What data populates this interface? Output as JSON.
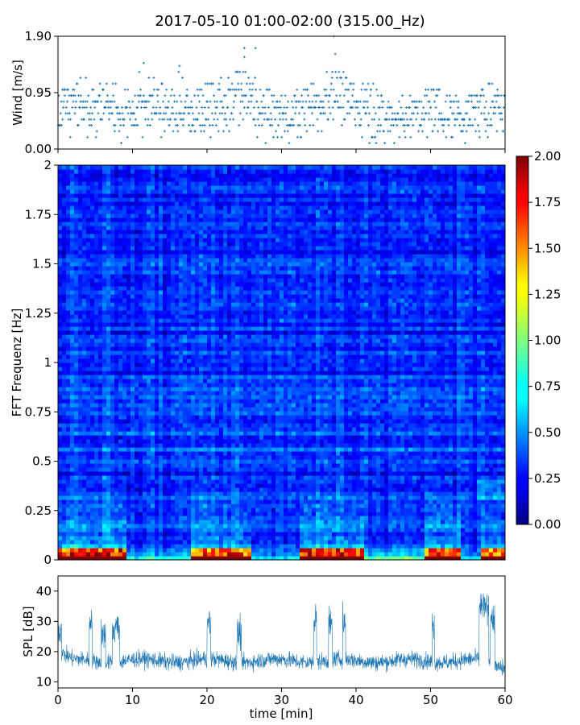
{
  "title": "2017-05-10 01:00-02:00 (315.00_Hz)",
  "chart_data": [
    {
      "type": "scatter",
      "name": "wind",
      "ylabel": "Wind [m/s]",
      "xlim": [
        0,
        60
      ],
      "ylim": [
        0,
        1.9
      ],
      "yticks": [
        0.0,
        0.95,
        1.9
      ],
      "ytick_labels": [
        "0.00",
        "0.95",
        "1.90"
      ],
      "color": "#1f77b4",
      "marker": "+",
      "levels": [
        0.1,
        0.2,
        0.3,
        0.4,
        0.5,
        0.6,
        0.7,
        0.8,
        0.9,
        1.0,
        1.1,
        1.2,
        1.3
      ],
      "profile": [
        {
          "t": 0,
          "center": 0.75,
          "peak": 1.1
        },
        {
          "t": 2,
          "center": 0.7,
          "peak": 1.1
        },
        {
          "t": 3,
          "center": 0.8,
          "peak": 1.3
        },
        {
          "t": 5,
          "center": 0.75,
          "peak": 1.0
        },
        {
          "t": 6,
          "center": 0.85,
          "peak": 1.1
        },
        {
          "t": 8,
          "center": 0.6,
          "peak": 1.2
        },
        {
          "t": 10,
          "center": 0.6,
          "peak": 1.0
        },
        {
          "t": 11,
          "center": 0.8,
          "peak": 1.5
        },
        {
          "t": 13,
          "center": 0.7,
          "peak": 1.2
        },
        {
          "t": 15,
          "center": 0.6,
          "peak": 1.0
        },
        {
          "t": 16,
          "center": 0.7,
          "peak": 1.4
        },
        {
          "t": 18,
          "center": 0.55,
          "peak": 0.9
        },
        {
          "t": 20,
          "center": 0.7,
          "peak": 1.1
        },
        {
          "t": 22,
          "center": 0.65,
          "peak": 1.2
        },
        {
          "t": 25,
          "center": 0.9,
          "peak": 1.7
        },
        {
          "t": 27,
          "center": 0.6,
          "peak": 1.0
        },
        {
          "t": 30,
          "center": 0.55,
          "peak": 0.9
        },
        {
          "t": 33,
          "center": 0.6,
          "peak": 1.0
        },
        {
          "t": 35,
          "center": 0.7,
          "peak": 1.2
        },
        {
          "t": 37,
          "center": 0.95,
          "peak": 1.9
        },
        {
          "t": 39,
          "center": 0.8,
          "peak": 1.2
        },
        {
          "t": 40,
          "center": 0.65,
          "peak": 1.1
        },
        {
          "t": 42,
          "center": 0.7,
          "peak": 1.1
        },
        {
          "t": 44,
          "center": 0.5,
          "peak": 0.8
        },
        {
          "t": 47,
          "center": 0.55,
          "peak": 0.9
        },
        {
          "t": 49,
          "center": 0.6,
          "peak": 0.95
        },
        {
          "t": 51,
          "center": 0.65,
          "peak": 1.0
        },
        {
          "t": 54,
          "center": 0.55,
          "peak": 0.9
        },
        {
          "t": 56,
          "center": 0.6,
          "peak": 0.9
        },
        {
          "t": 58,
          "center": 0.75,
          "peak": 1.1
        },
        {
          "t": 60,
          "center": 0.65,
          "peak": 0.9
        }
      ]
    },
    {
      "type": "heatmap",
      "name": "spectrogram",
      "ylabel": "FFT Frequenz [Hz]",
      "xlim": [
        0,
        60
      ],
      "ylim": [
        0,
        2
      ],
      "yticks": [
        0,
        0.25,
        0.5,
        0.75,
        1,
        1.25,
        1.5,
        1.75,
        2
      ],
      "ytick_labels": [
        "0",
        "0.25",
        "0.5",
        "0.75",
        "1",
        "1.25",
        "1.5",
        "1.75",
        "2"
      ],
      "colormap": "jet",
      "clim": [
        0,
        2
      ],
      "colorbar_ticks": [
        "0.00",
        "0.25",
        "0.50",
        "0.75",
        "1.00",
        "1.25",
        "1.50",
        "1.75",
        "2.00"
      ],
      "colorbar_location": "right",
      "background_level": 0.15,
      "active_segments": [
        {
          "t0": 0.0,
          "t1": 9.4,
          "strength": 1.0
        },
        {
          "t0": 9.4,
          "t1": 17.8,
          "strength": 0.15
        },
        {
          "t0": 17.8,
          "t1": 26.0,
          "strength": 0.85
        },
        {
          "t0": 26.0,
          "t1": 32.6,
          "strength": 0.1
        },
        {
          "t0": 32.6,
          "t1": 41.0,
          "strength": 1.0
        },
        {
          "t0": 41.0,
          "t1": 49.4,
          "strength": 0.2
        },
        {
          "t0": 49.4,
          "t1": 53.8,
          "strength": 0.9
        },
        {
          "t0": 53.8,
          "t1": 57.0,
          "strength": 0.1
        },
        {
          "t0": 57.0,
          "t1": 60.0,
          "strength": 0.85
        }
      ]
    },
    {
      "type": "line",
      "name": "spl",
      "ylabel": "SPL [dB]",
      "xlabel": "time [min]",
      "xlim": [
        0,
        60
      ],
      "ylim": [
        8,
        45
      ],
      "xticks": [
        0,
        10,
        20,
        30,
        40,
        50,
        60
      ],
      "yticks": [
        10,
        20,
        30,
        40
      ],
      "color": "#1f77b4",
      "baseline_db": 17,
      "baseline_noise_db": 2.2,
      "events": [
        {
          "t0": 0.0,
          "t1": 0.5,
          "db": 30
        },
        {
          "t0": 4.2,
          "t1": 4.6,
          "db": 33
        },
        {
          "t0": 5.8,
          "t1": 6.4,
          "db": 29
        },
        {
          "t0": 7.3,
          "t1": 8.3,
          "db": 31
        },
        {
          "t0": 20.0,
          "t1": 20.5,
          "db": 33
        },
        {
          "t0": 24.0,
          "t1": 24.6,
          "db": 29
        },
        {
          "t0": 34.3,
          "t1": 34.7,
          "db": 34
        },
        {
          "t0": 36.3,
          "t1": 36.8,
          "db": 32
        },
        {
          "t0": 38.2,
          "t1": 38.6,
          "db": 34
        },
        {
          "t0": 50.2,
          "t1": 50.5,
          "db": 32
        },
        {
          "t0": 56.5,
          "t1": 57.8,
          "db": 38
        },
        {
          "t0": 58.0,
          "t1": 58.6,
          "db": 34
        }
      ]
    }
  ]
}
